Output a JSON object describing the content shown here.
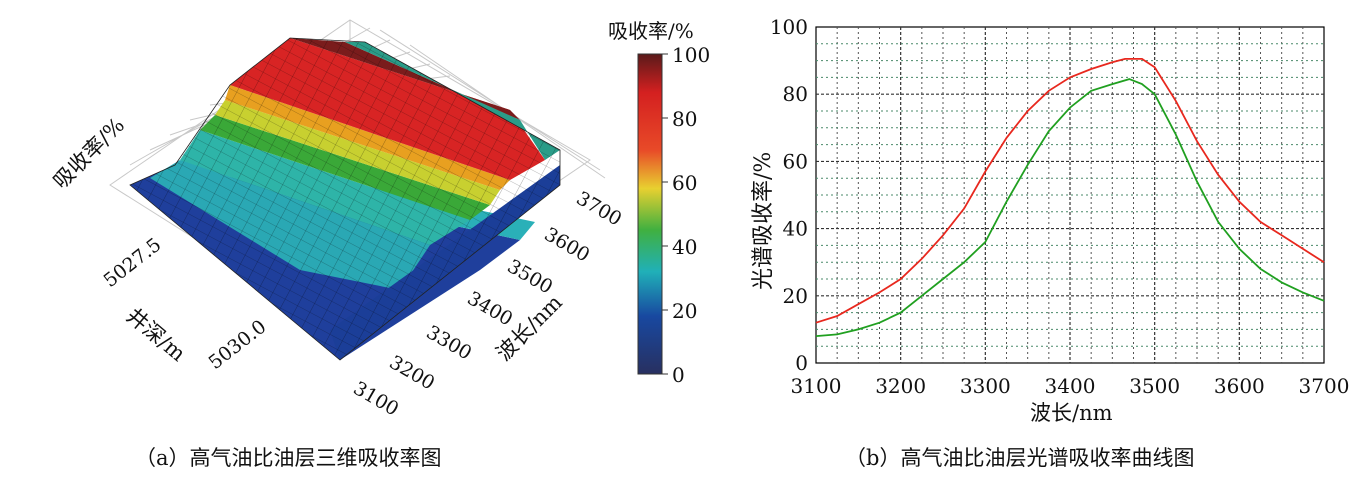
{
  "panel_a": {
    "caption": "（a）高气油比油层三维吸收率图",
    "z_label": "吸收率/%",
    "depth_label": "井深/m",
    "wl_label": "波长/nm",
    "depth_ticks": [
      "5027.5",
      "5030.0"
    ],
    "wl_ticks": [
      "3100",
      "3200",
      "3300",
      "3400",
      "3500",
      "3600",
      "3700"
    ],
    "colorbar": {
      "title": "吸收率/%",
      "ticks": [
        "100",
        "80",
        "60",
        "40",
        "20",
        "0"
      ],
      "stops": [
        "#7a1c1c",
        "#e02828",
        "#e8d030",
        "#40b040",
        "#20a0b8",
        "#1848a0",
        "#283060"
      ]
    }
  },
  "panel_b": {
    "caption": "（b）高气油比油层光谱吸收率曲线图",
    "xlabel": "波长/nm",
    "ylabel": "光谱吸收率/%",
    "x_ticks": [
      "3100",
      "3200",
      "3300",
      "3400",
      "3500",
      "3600",
      "3700"
    ],
    "y_ticks": [
      "100",
      "80",
      "60",
      "40",
      "20",
      "0"
    ]
  },
  "chart_data": [
    {
      "type": "surface",
      "zlabel": "吸收率/%",
      "xlabel": "波长/nm",
      "ylabel": "井深/m",
      "x_range": [
        3100,
        3700
      ],
      "z_range": [
        0,
        100
      ]
    },
    {
      "type": "line",
      "xlabel": "波长/nm",
      "ylabel": "光谱吸收率/%",
      "xlim": [
        3100,
        3700
      ],
      "ylim": [
        0,
        100
      ],
      "grid": true,
      "series": [
        {
          "color": "#e8281e",
          "x": [
            3100,
            3125,
            3150,
            3175,
            3200,
            3225,
            3250,
            3275,
            3300,
            3325,
            3350,
            3375,
            3400,
            3425,
            3450,
            3465,
            3485,
            3500,
            3525,
            3550,
            3575,
            3600,
            3625,
            3650,
            3675,
            3700
          ],
          "y": [
            12,
            14,
            17.5,
            21,
            25,
            31,
            38,
            46,
            57,
            67,
            75,
            81,
            85,
            87.5,
            89.5,
            90.5,
            90.5,
            88,
            78,
            66,
            56,
            48,
            42,
            38,
            34,
            30
          ]
        },
        {
          "color": "#20a020",
          "x": [
            3100,
            3125,
            3150,
            3175,
            3200,
            3225,
            3250,
            3275,
            3300,
            3325,
            3350,
            3375,
            3400,
            3425,
            3450,
            3470,
            3485,
            3500,
            3525,
            3550,
            3575,
            3600,
            3625,
            3650,
            3675,
            3700
          ],
          "y": [
            8,
            8.5,
            10,
            12,
            15,
            20,
            25,
            30,
            36,
            48,
            59,
            69,
            76,
            81,
            83,
            84.5,
            83,
            80,
            68,
            54,
            42,
            34,
            28,
            24,
            21,
            18.5
          ]
        }
      ]
    }
  ]
}
